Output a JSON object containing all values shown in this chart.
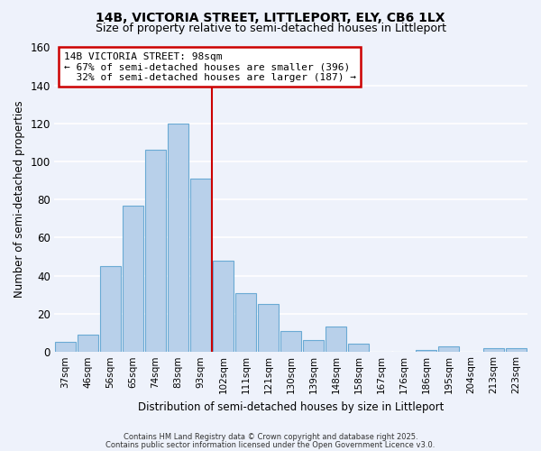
{
  "title": "14B, VICTORIA STREET, LITTLEPORT, ELY, CB6 1LX",
  "subtitle": "Size of property relative to semi-detached houses in Littleport",
  "xlabel": "Distribution of semi-detached houses by size in Littleport",
  "ylabel": "Number of semi-detached properties",
  "categories": [
    "37sqm",
    "46sqm",
    "56sqm",
    "65sqm",
    "74sqm",
    "83sqm",
    "93sqm",
    "102sqm",
    "111sqm",
    "121sqm",
    "130sqm",
    "139sqm",
    "148sqm",
    "158sqm",
    "167sqm",
    "176sqm",
    "186sqm",
    "195sqm",
    "204sqm",
    "213sqm",
    "223sqm"
  ],
  "values": [
    5,
    9,
    45,
    77,
    106,
    120,
    91,
    48,
    31,
    25,
    11,
    6,
    13,
    4,
    0,
    0,
    1,
    3,
    0,
    2,
    2
  ],
  "bar_color": "#b8d0ea",
  "bar_edge_color": "#6aaad4",
  "background_color": "#eef2fb",
  "grid_color": "#ffffff",
  "ylim": [
    0,
    160
  ],
  "yticks": [
    0,
    20,
    40,
    60,
    80,
    100,
    120,
    140,
    160
  ],
  "property_label": "14B VICTORIA STREET: 98sqm",
  "pct_smaller": 67,
  "pct_smaller_count": 396,
  "pct_larger": 32,
  "pct_larger_count": 187,
  "annotation_box_color": "#ffffff",
  "annotation_box_edge": "#cc0000",
  "vline_color": "#cc0000",
  "vline_x": 6.5,
  "footer1": "Contains HM Land Registry data © Crown copyright and database right 2025.",
  "footer2": "Contains public sector information licensed under the Open Government Licence v3.0."
}
